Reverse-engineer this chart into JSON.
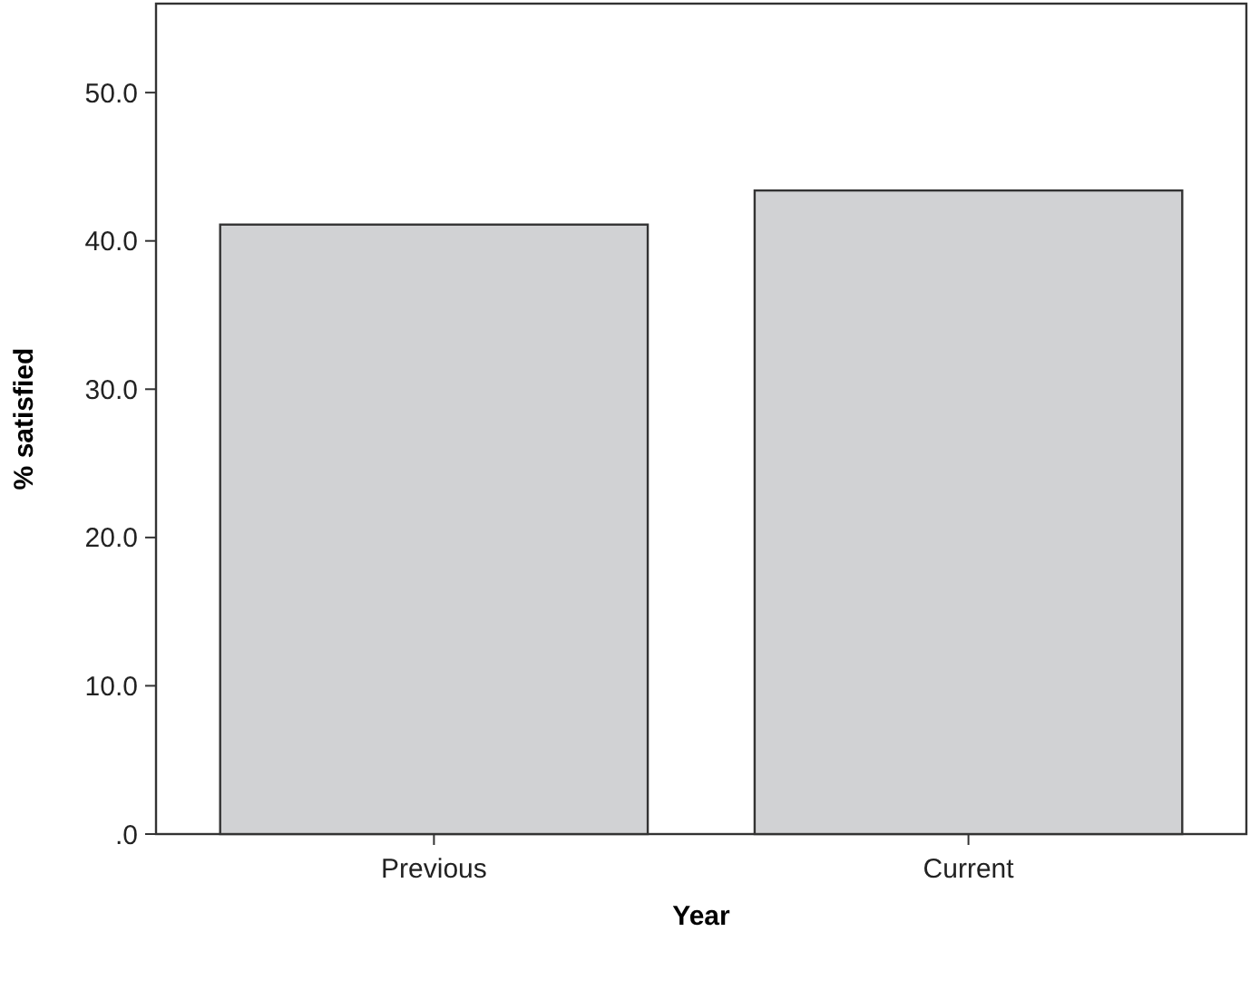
{
  "chart_data": {
    "type": "bar",
    "xlabel": "Year",
    "ylabel": "% satisfied",
    "categories": [
      "Previous",
      "Current"
    ],
    "values": [
      41.1,
      43.4
    ],
    "color": "#d1d2d4",
    "ylim": [
      0,
      56
    ],
    "yticks": [
      {
        "value": 0,
        "label": ".0"
      },
      {
        "value": 10,
        "label": "10.0"
      },
      {
        "value": 20,
        "label": "20.0"
      },
      {
        "value": 30,
        "label": "30.0"
      },
      {
        "value": 40,
        "label": "40.0"
      },
      {
        "value": 50,
        "label": "50.0"
      }
    ],
    "grid": false
  }
}
